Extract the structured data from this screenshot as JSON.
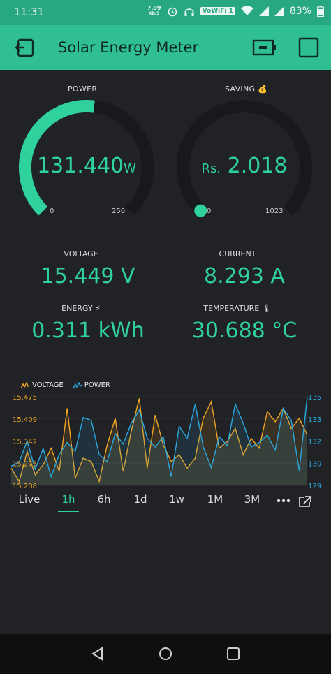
{
  "status": {
    "time": "11:31",
    "net_speed_value": "7.99",
    "net_speed_unit": "KB/S",
    "lte_label": "VoWiFi 1",
    "battery": "83%"
  },
  "appbar": {
    "title": "Solar Energy Meter"
  },
  "power": {
    "label": "POWER",
    "value": "131.440",
    "unit": "W",
    "min": "0",
    "max": "250",
    "fraction": 0.526,
    "color": "#2fd29c"
  },
  "saving": {
    "label": "SAVING 💰",
    "prefix": "Rs.",
    "value": "2.018",
    "min": "0",
    "max": "1023",
    "fraction": 0.002
  },
  "metrics": {
    "voltage_label": "VOLTAGE",
    "voltage_value": "15.449 V",
    "current_label": "CURRENT",
    "current_value": "8.293 A",
    "energy_label": "ENERGY ⚡",
    "energy_value": "0.311 kWh",
    "temperature_label": "TEMPERATURE 🌡",
    "temperature_value": "30.688 °C"
  },
  "chart_data": {
    "type": "line",
    "series": [
      {
        "name": "VOLTAGE",
        "color": "#f2a623",
        "axis": "left",
        "values": [
          15.26,
          15.22,
          15.31,
          15.24,
          15.27,
          15.32,
          15.25,
          15.44,
          15.23,
          15.29,
          15.28,
          15.22,
          15.33,
          15.41,
          15.25,
          15.37,
          15.47,
          15.26,
          15.42,
          15.33,
          15.28,
          15.3,
          15.26,
          15.29,
          15.41,
          15.46,
          15.32,
          15.34,
          15.38,
          15.3,
          15.35,
          15.32,
          15.43,
          15.4,
          15.44,
          15.38,
          15.41,
          15.36
        ]
      },
      {
        "name": "POWER",
        "color": "#29a9e0",
        "axis": "right",
        "values": [
          130.3,
          130.6,
          132.0,
          130.1,
          131.5,
          129.6,
          131.1,
          131.9,
          131.3,
          133.6,
          133.4,
          131.1,
          130.6,
          132.5,
          131.8,
          133.2,
          134.1,
          132.2,
          131.6,
          132.3,
          129.6,
          133.0,
          132.2,
          134.5,
          131.6,
          130.2,
          132.3,
          131.7,
          134.5,
          133.2,
          131.6,
          131.9,
          132.4,
          131.4,
          134.2,
          133.4,
          130.0,
          135.0
        ]
      }
    ],
    "y_left_ticks": [
      "15.475",
      "15.409",
      "15.342",
      "15.275",
      "15.208"
    ],
    "y_left_range": [
      15.208,
      15.475
    ],
    "y_right_ticks": [
      "135",
      "133",
      "132",
      "130",
      "129"
    ],
    "y_right_range": [
      129,
      135
    ],
    "legend_position": "top-left"
  },
  "tabs": [
    "Live",
    "1h",
    "6h",
    "1d",
    "1w",
    "1M",
    "3M"
  ],
  "active_tab": "1h",
  "colors": {
    "accent": "#2fd29c",
    "header": "#2fbf92",
    "background": "#212226"
  }
}
